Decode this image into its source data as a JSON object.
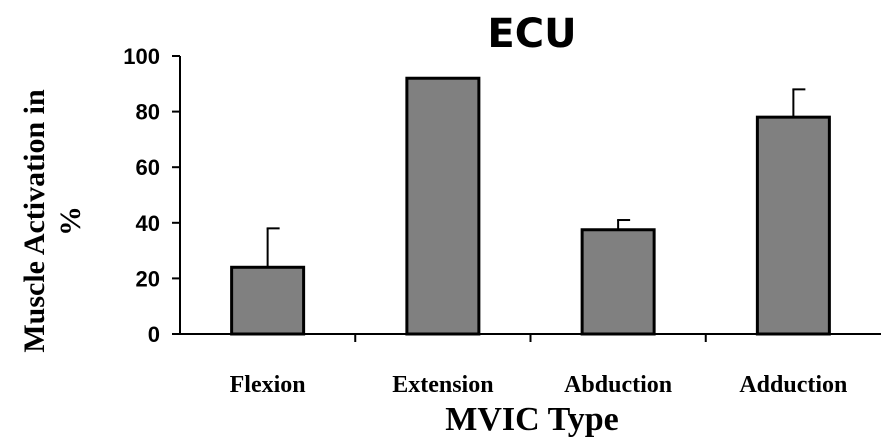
{
  "chart_data": {
    "type": "bar",
    "title": "ECU",
    "xlabel": "MVIC Type",
    "ylabel_line1": "Muscle Activation in",
    "ylabel_line2": "%",
    "categories": [
      "Flexion",
      "Extension",
      "Abduction",
      "Adduction"
    ],
    "values": [
      24,
      92,
      37.5,
      78
    ],
    "error_plus": [
      14,
      0,
      3.5,
      10
    ],
    "ylim": [
      0,
      100
    ],
    "yticks": [
      0,
      20,
      40,
      60,
      80,
      100
    ],
    "grid": false,
    "legend": "none",
    "bar_color": "#808080",
    "bar_edge_color": "#000000"
  }
}
